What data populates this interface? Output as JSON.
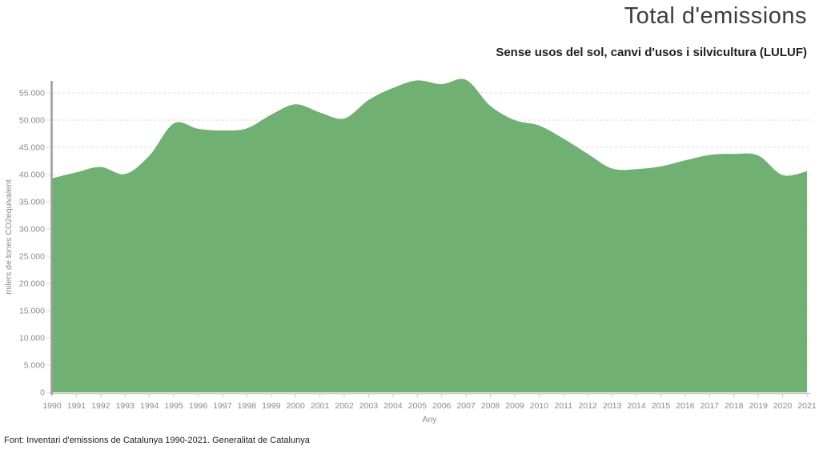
{
  "chart_data": {
    "type": "area",
    "title": "Total d'emissions",
    "subtitle": "Sense usos del sol, canvi d'usos i silvicultura (LULUF)",
    "source": "Font: Inventari d'emissions de Catalunya 1990-2021. Generalitat de Catalunya",
    "xlabel": "Any",
    "ylabel": "milers de tones CO2equivalent",
    "legend": "none",
    "grid": "horizontal-dashed",
    "categories": [
      "1990",
      "1991",
      "1992",
      "1993",
      "1994",
      "1995",
      "1996",
      "1997",
      "1998",
      "1999",
      "2000",
      "2001",
      "2002",
      "2003",
      "2004",
      "2005",
      "2006",
      "2007",
      "2008",
      "2009",
      "2010",
      "2011",
      "2012",
      "2013",
      "2014",
      "2015",
      "2016",
      "2017",
      "2018",
      "2019",
      "2020",
      "2021"
    ],
    "values": [
      39300,
      40400,
      41400,
      40100,
      43500,
      49400,
      48400,
      48100,
      48500,
      51000,
      52900,
      51400,
      50300,
      53700,
      55900,
      57300,
      56600,
      57400,
      52600,
      50000,
      49000,
      46600,
      43800,
      41100,
      41000,
      41500,
      42600,
      43600,
      43800,
      43500,
      39900,
      40600
    ],
    "ylim": [
      0,
      57500
    ],
    "y_ticks": [
      0,
      5000,
      10000,
      15000,
      20000,
      25000,
      30000,
      35000,
      40000,
      45000,
      50000,
      55000
    ],
    "y_tick_labels": [
      "0",
      "5.000",
      "10.000",
      "15.000",
      "20.000",
      "25.000",
      "30.000",
      "35.000",
      "40.000",
      "45.000",
      "50.000",
      "55.000"
    ],
    "colors": {
      "series_fill": "#71B073",
      "axis_line": "#9e9e9e",
      "baseline": "#c9c9c9",
      "gridline": "#d9d9d9",
      "tick_text": "#8a8a8a",
      "title_text": "#3d3d3d"
    }
  }
}
